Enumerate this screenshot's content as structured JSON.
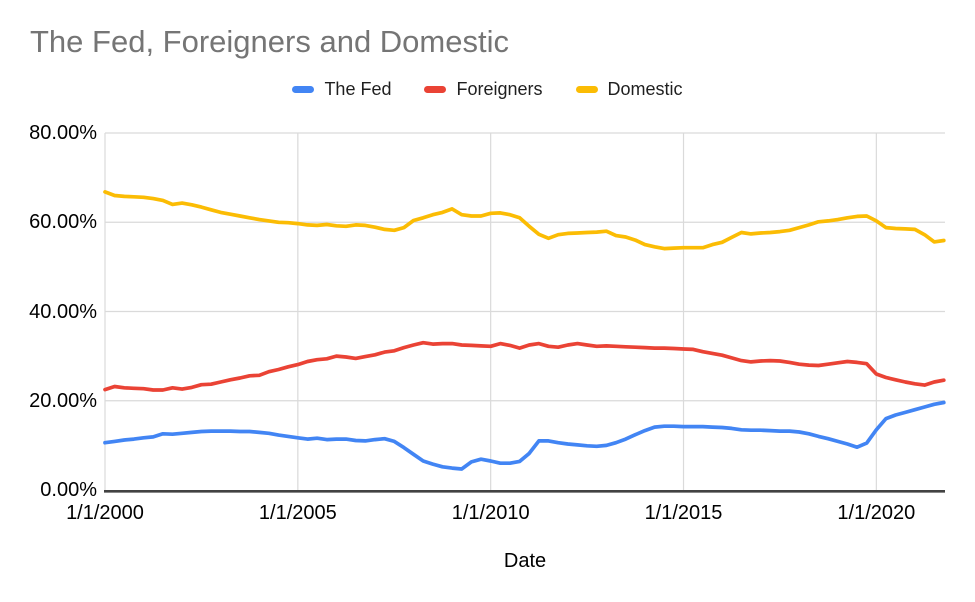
{
  "chart_data": {
    "type": "line",
    "title": "The Fed, Foreigners and Domestic",
    "xlabel": "Date",
    "ylabel": "",
    "grid": true,
    "legend_position": "top",
    "ylim": [
      0,
      80
    ],
    "xlim": [
      2000,
      2021.78
    ],
    "y_ticks": [
      {
        "value": 0,
        "label": "0.00%"
      },
      {
        "value": 20,
        "label": "20.00%"
      },
      {
        "value": 40,
        "label": "40.00%"
      },
      {
        "value": 60,
        "label": "60.00%"
      },
      {
        "value": 80,
        "label": "80.00%"
      }
    ],
    "x_ticks": [
      {
        "value": 2000,
        "label": "1/1/2000"
      },
      {
        "value": 2005,
        "label": "1/1/2005"
      },
      {
        "value": 2010,
        "label": "1/1/2010"
      },
      {
        "value": 2015,
        "label": "1/1/2015"
      },
      {
        "value": 2020,
        "label": "1/1/2020"
      }
    ],
    "x_unit": "decimal_year_quarterly",
    "x": [
      2000,
      2000.25,
      2000.5,
      2000.75,
      2001,
      2001.25,
      2001.5,
      2001.75,
      2002,
      2002.25,
      2002.5,
      2002.75,
      2003,
      2003.25,
      2003.5,
      2003.75,
      2004,
      2004.25,
      2004.5,
      2004.75,
      2005,
      2005.25,
      2005.5,
      2005.75,
      2006,
      2006.25,
      2006.5,
      2006.75,
      2007,
      2007.25,
      2007.5,
      2007.75,
      2008,
      2008.25,
      2008.5,
      2008.75,
      2009,
      2009.25,
      2009.5,
      2009.75,
      2010,
      2010.25,
      2010.5,
      2010.75,
      2011,
      2011.25,
      2011.5,
      2011.75,
      2012,
      2012.25,
      2012.5,
      2012.75,
      2013,
      2013.25,
      2013.5,
      2013.75,
      2014,
      2014.25,
      2014.5,
      2014.75,
      2015,
      2015.25,
      2015.5,
      2015.75,
      2016,
      2016.25,
      2016.5,
      2016.75,
      2017,
      2017.25,
      2017.5,
      2017.75,
      2018,
      2018.25,
      2018.5,
      2018.75,
      2019,
      2019.25,
      2019.5,
      2019.75,
      2020,
      2020.25,
      2020.5,
      2020.75,
      2021,
      2021.25,
      2021.5,
      2021.75
    ],
    "series": [
      {
        "name": "The Fed",
        "color": "#4285F4",
        "values": [
          10.6,
          10.9,
          11.2,
          11.4,
          11.7,
          11.9,
          12.6,
          12.5,
          12.7,
          12.9,
          13.1,
          13.2,
          13.2,
          13.2,
          13.1,
          13.1,
          12.9,
          12.7,
          12.3,
          12.0,
          11.7,
          11.4,
          11.6,
          11.3,
          11.4,
          11.4,
          11.1,
          11.0,
          11.3,
          11.5,
          10.9,
          9.5,
          8.0,
          6.5,
          5.8,
          5.2,
          4.9,
          4.7,
          6.3,
          6.9,
          6.5,
          6.0,
          6.0,
          6.4,
          8.2,
          11.0,
          11.0,
          10.6,
          10.3,
          10.1,
          9.9,
          9.8,
          10.0,
          10.6,
          11.4,
          12.4,
          13.3,
          14.1,
          14.3,
          14.3,
          14.2,
          14.2,
          14.2,
          14.1,
          14.0,
          13.8,
          13.5,
          13.4,
          13.4,
          13.3,
          13.2,
          13.2,
          13.0,
          12.6,
          12.0,
          11.5,
          10.9,
          10.3,
          9.6,
          10.5,
          13.5,
          16.0,
          16.8,
          17.4,
          18.0,
          18.6,
          19.2,
          19.6
        ]
      },
      {
        "name": "Foreigners",
        "color": "#EA4335",
        "values": [
          22.5,
          23.2,
          22.9,
          22.8,
          22.7,
          22.4,
          22.4,
          22.9,
          22.6,
          23.0,
          23.6,
          23.7,
          24.2,
          24.7,
          25.1,
          25.6,
          25.7,
          26.5,
          27.0,
          27.6,
          28.1,
          28.8,
          29.2,
          29.4,
          30.0,
          29.8,
          29.5,
          29.9,
          30.3,
          30.9,
          31.2,
          31.9,
          32.5,
          33.0,
          32.7,
          32.8,
          32.8,
          32.5,
          32.4,
          32.3,
          32.2,
          32.8,
          32.4,
          31.8,
          32.5,
          32.8,
          32.2,
          32.0,
          32.5,
          32.8,
          32.5,
          32.2,
          32.3,
          32.2,
          32.1,
          32.0,
          31.9,
          31.8,
          31.8,
          31.7,
          31.6,
          31.5,
          31.0,
          30.6,
          30.2,
          29.6,
          29.0,
          28.7,
          28.9,
          29.0,
          28.9,
          28.6,
          28.2,
          28.0,
          27.9,
          28.2,
          28.5,
          28.8,
          28.6,
          28.3,
          26.0,
          25.2,
          24.7,
          24.2,
          23.8,
          23.5,
          24.2,
          24.6
        ]
      },
      {
        "name": "Domestic",
        "color": "#FBBC04",
        "values": [
          66.8,
          66.0,
          65.8,
          65.7,
          65.6,
          65.3,
          64.9,
          64.0,
          64.3,
          63.9,
          63.4,
          62.8,
          62.2,
          61.8,
          61.4,
          61.0,
          60.6,
          60.3,
          60.0,
          59.9,
          59.7,
          59.4,
          59.3,
          59.5,
          59.2,
          59.1,
          59.4,
          59.3,
          58.9,
          58.4,
          58.2,
          58.8,
          60.4,
          61.0,
          61.7,
          62.2,
          63.0,
          61.7,
          61.4,
          61.4,
          62.0,
          62.1,
          61.7,
          61.0,
          59.1,
          57.3,
          56.4,
          57.2,
          57.5,
          57.6,
          57.7,
          57.8,
          58.0,
          57.0,
          56.7,
          56.0,
          55.0,
          54.5,
          54.1,
          54.2,
          54.3,
          54.3,
          54.3,
          55.0,
          55.5,
          56.6,
          57.7,
          57.4,
          57.6,
          57.7,
          57.9,
          58.2,
          58.8,
          59.4,
          60.1,
          60.3,
          60.6,
          61.0,
          61.3,
          61.4,
          60.3,
          58.8,
          58.6,
          58.5,
          58.4,
          57.2,
          55.6,
          55.9
        ]
      }
    ],
    "style": {
      "title_color": "#757575",
      "tick_color": "#000000",
      "gridline_color": "#DADADA",
      "axis_line_color": "#424242",
      "background": "#ffffff"
    }
  }
}
